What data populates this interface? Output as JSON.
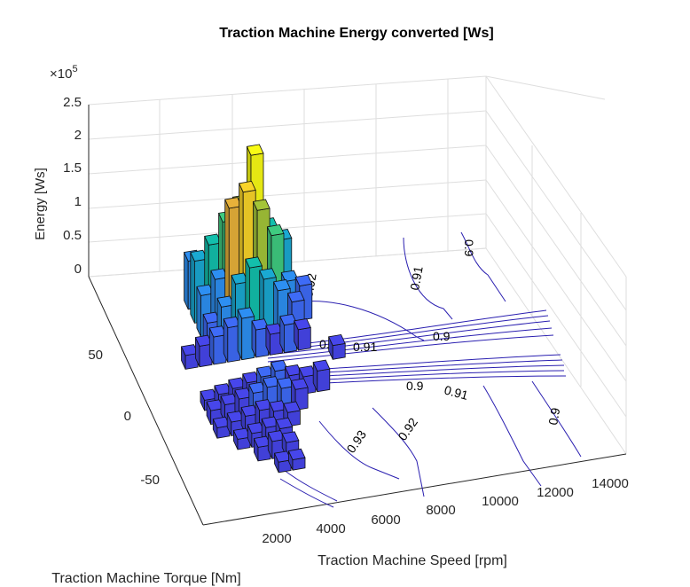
{
  "chart_data": {
    "type": "bar3d",
    "title": "Traction Machine Energy converted [Ws]",
    "xlabel": "Traction Machine Speed [rpm]",
    "ylabel": "Traction Machine Torque [Nm]",
    "zlabel": "Energy [Ws]",
    "z_exponent": "×10^5",
    "z_exponent_label": "×10",
    "z_exponent_power": "5",
    "x_ticks": [
      "2000",
      "4000",
      "6000",
      "8000",
      "10000",
      "12000",
      "14000"
    ],
    "y_ticks": [
      "-50",
      "0",
      "50"
    ],
    "z_ticks": [
      "0",
      "0.5",
      "1",
      "1.5",
      "2",
      "2.5"
    ],
    "zlim": [
      0,
      250000
    ],
    "grid": true,
    "colormap": [
      "#3e26a8",
      "#4746eb",
      "#3e6bf7",
      "#2d8ff2",
      "#1aa9d2",
      "#13bfac",
      "#3fcb80",
      "#a4c538",
      "#e7b13a",
      "#f9d428",
      "#f9fb15"
    ],
    "contour_labels": [
      "0.92",
      "0.91",
      "0.9",
      "0.92",
      "0.91",
      "0.9",
      "0.9",
      "0.91",
      "0.9",
      "0.93",
      "0.92"
    ],
    "bars": [
      {
        "speed": 3000,
        "torque": 60,
        "energy": 70000
      },
      {
        "speed": 3000,
        "torque": 50,
        "energy": 90000
      },
      {
        "speed": 3500,
        "torque": 50,
        "energy": 110000
      },
      {
        "speed": 4000,
        "torque": 50,
        "energy": 140000
      },
      {
        "speed": 4500,
        "torque": 50,
        "energy": 160000
      },
      {
        "speed": 5000,
        "torque": 50,
        "energy": 230000
      },
      {
        "speed": 5500,
        "torque": 50,
        "energy": 120000
      },
      {
        "speed": 6000,
        "torque": 50,
        "energy": 100000
      },
      {
        "speed": 3000,
        "torque": 40,
        "energy": 60000
      },
      {
        "speed": 3500,
        "torque": 40,
        "energy": 80000
      },
      {
        "speed": 4000,
        "torque": 40,
        "energy": 180000
      },
      {
        "speed": 4500,
        "torque": 40,
        "energy": 200000
      },
      {
        "speed": 5000,
        "torque": 40,
        "energy": 170000
      },
      {
        "speed": 5500,
        "torque": 40,
        "energy": 130000
      },
      {
        "speed": 6000,
        "torque": 40,
        "energy": 60000
      },
      {
        "speed": 6500,
        "torque": 40,
        "energy": 50000
      },
      {
        "speed": 3000,
        "torque": 30,
        "energy": 40000
      },
      {
        "speed": 3500,
        "torque": 30,
        "energy": 60000
      },
      {
        "speed": 4000,
        "torque": 30,
        "energy": 90000
      },
      {
        "speed": 4500,
        "torque": 30,
        "energy": 110000
      },
      {
        "speed": 5000,
        "torque": 30,
        "energy": 90000
      },
      {
        "speed": 5500,
        "torque": 30,
        "energy": 70000
      },
      {
        "speed": 6000,
        "torque": 30,
        "energy": 50000
      },
      {
        "speed": 2000,
        "torque": 20,
        "energy": 20000
      },
      {
        "speed": 2500,
        "torque": 20,
        "energy": 30000
      },
      {
        "speed": 3000,
        "torque": 20,
        "energy": 40000
      },
      {
        "speed": 3500,
        "torque": 20,
        "energy": 50000
      },
      {
        "speed": 4000,
        "torque": 20,
        "energy": 60000
      },
      {
        "speed": 4500,
        "torque": 20,
        "energy": 40000
      },
      {
        "speed": 5000,
        "torque": 20,
        "energy": 30000
      },
      {
        "speed": 5500,
        "torque": 20,
        "energy": 40000
      },
      {
        "speed": 6000,
        "torque": 20,
        "energy": 30000
      },
      {
        "speed": 7000,
        "torque": 10,
        "energy": 20000
      },
      {
        "speed": 2000,
        "torque": -10,
        "energy": 15000
      },
      {
        "speed": 2500,
        "torque": -10,
        "energy": 20000
      },
      {
        "speed": 3000,
        "torque": -10,
        "energy": 25000
      },
      {
        "speed": 3500,
        "torque": -10,
        "energy": 30000
      },
      {
        "speed": 4000,
        "torque": -10,
        "energy": 35000
      },
      {
        "speed": 4500,
        "torque": -10,
        "energy": 40000
      },
      {
        "speed": 5000,
        "torque": -10,
        "energy": 30000
      },
      {
        "speed": 5500,
        "torque": -10,
        "energy": 25000
      },
      {
        "speed": 6000,
        "torque": -10,
        "energy": 30000
      },
      {
        "speed": 2000,
        "torque": -20,
        "energy": 20000
      },
      {
        "speed": 2500,
        "torque": -20,
        "energy": 25000
      },
      {
        "speed": 3000,
        "torque": -20,
        "energy": 30000
      },
      {
        "speed": 3500,
        "torque": -20,
        "energy": 35000
      },
      {
        "speed": 4000,
        "torque": -20,
        "energy": 40000
      },
      {
        "speed": 4500,
        "torque": -20,
        "energy": 35000
      },
      {
        "speed": 5000,
        "torque": -20,
        "energy": 30000
      },
      {
        "speed": 2000,
        "torque": -30,
        "energy": 15000
      },
      {
        "speed": 2500,
        "torque": -30,
        "energy": 20000
      },
      {
        "speed": 3000,
        "torque": -30,
        "energy": 25000
      },
      {
        "speed": 3500,
        "torque": -30,
        "energy": 30000
      },
      {
        "speed": 4000,
        "torque": -30,
        "energy": 25000
      },
      {
        "speed": 4500,
        "torque": -30,
        "energy": 20000
      },
      {
        "speed": 2500,
        "torque": -40,
        "energy": 15000
      },
      {
        "speed": 3000,
        "torque": -40,
        "energy": 20000
      },
      {
        "speed": 3500,
        "torque": -40,
        "energy": 25000
      },
      {
        "speed": 4000,
        "torque": -40,
        "energy": 20000
      },
      {
        "speed": 3000,
        "torque": -50,
        "energy": 20000
      },
      {
        "speed": 3500,
        "torque": -50,
        "energy": 25000
      },
      {
        "speed": 4000,
        "torque": -50,
        "energy": 20000
      },
      {
        "speed": 3500,
        "torque": -60,
        "energy": 15000
      },
      {
        "speed": 4000,
        "torque": -60,
        "energy": 15000
      }
    ]
  }
}
